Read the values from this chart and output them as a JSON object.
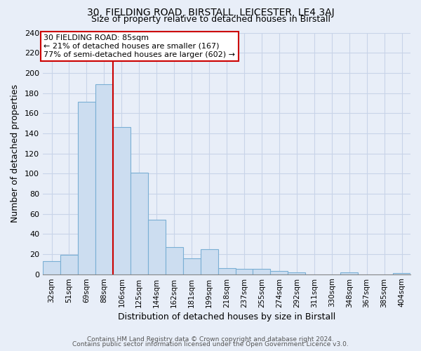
{
  "title_line1": "30, FIELDING ROAD, BIRSTALL, LEICESTER, LE4 3AJ",
  "title_line2": "Size of property relative to detached houses in Birstall",
  "xlabel": "Distribution of detached houses by size in Birstall",
  "ylabel": "Number of detached properties",
  "bar_labels": [
    "32sqm",
    "51sqm",
    "69sqm",
    "88sqm",
    "106sqm",
    "125sqm",
    "144sqm",
    "162sqm",
    "181sqm",
    "199sqm",
    "218sqm",
    "237sqm",
    "255sqm",
    "274sqm",
    "292sqm",
    "311sqm",
    "330sqm",
    "348sqm",
    "367sqm",
    "385sqm",
    "404sqm"
  ],
  "bar_heights": [
    13,
    19,
    171,
    189,
    146,
    101,
    54,
    27,
    16,
    25,
    6,
    5,
    5,
    3,
    2,
    0,
    0,
    2,
    0,
    0,
    1
  ],
  "bar_color": "#ccddf0",
  "bar_edge_color": "#7aafd4",
  "vline_color": "#cc0000",
  "annotation_title": "30 FIELDING ROAD: 85sqm",
  "annotation_line1": "← 21% of detached houses are smaller (167)",
  "annotation_line2": "77% of semi-detached houses are larger (602) →",
  "annotation_box_color": "#ffffff",
  "annotation_box_edge_color": "#cc0000",
  "ylim": [
    0,
    240
  ],
  "yticks": [
    0,
    20,
    40,
    60,
    80,
    100,
    120,
    140,
    160,
    180,
    200,
    220,
    240
  ],
  "footer_line1": "Contains HM Land Registry data © Crown copyright and database right 2024.",
  "footer_line2": "Contains public sector information licensed under the Open Government Licence v3.0.",
  "bg_color": "#e8eef8",
  "plot_bg_color": "#e8eef8",
  "grid_color": "#c8d4e8"
}
